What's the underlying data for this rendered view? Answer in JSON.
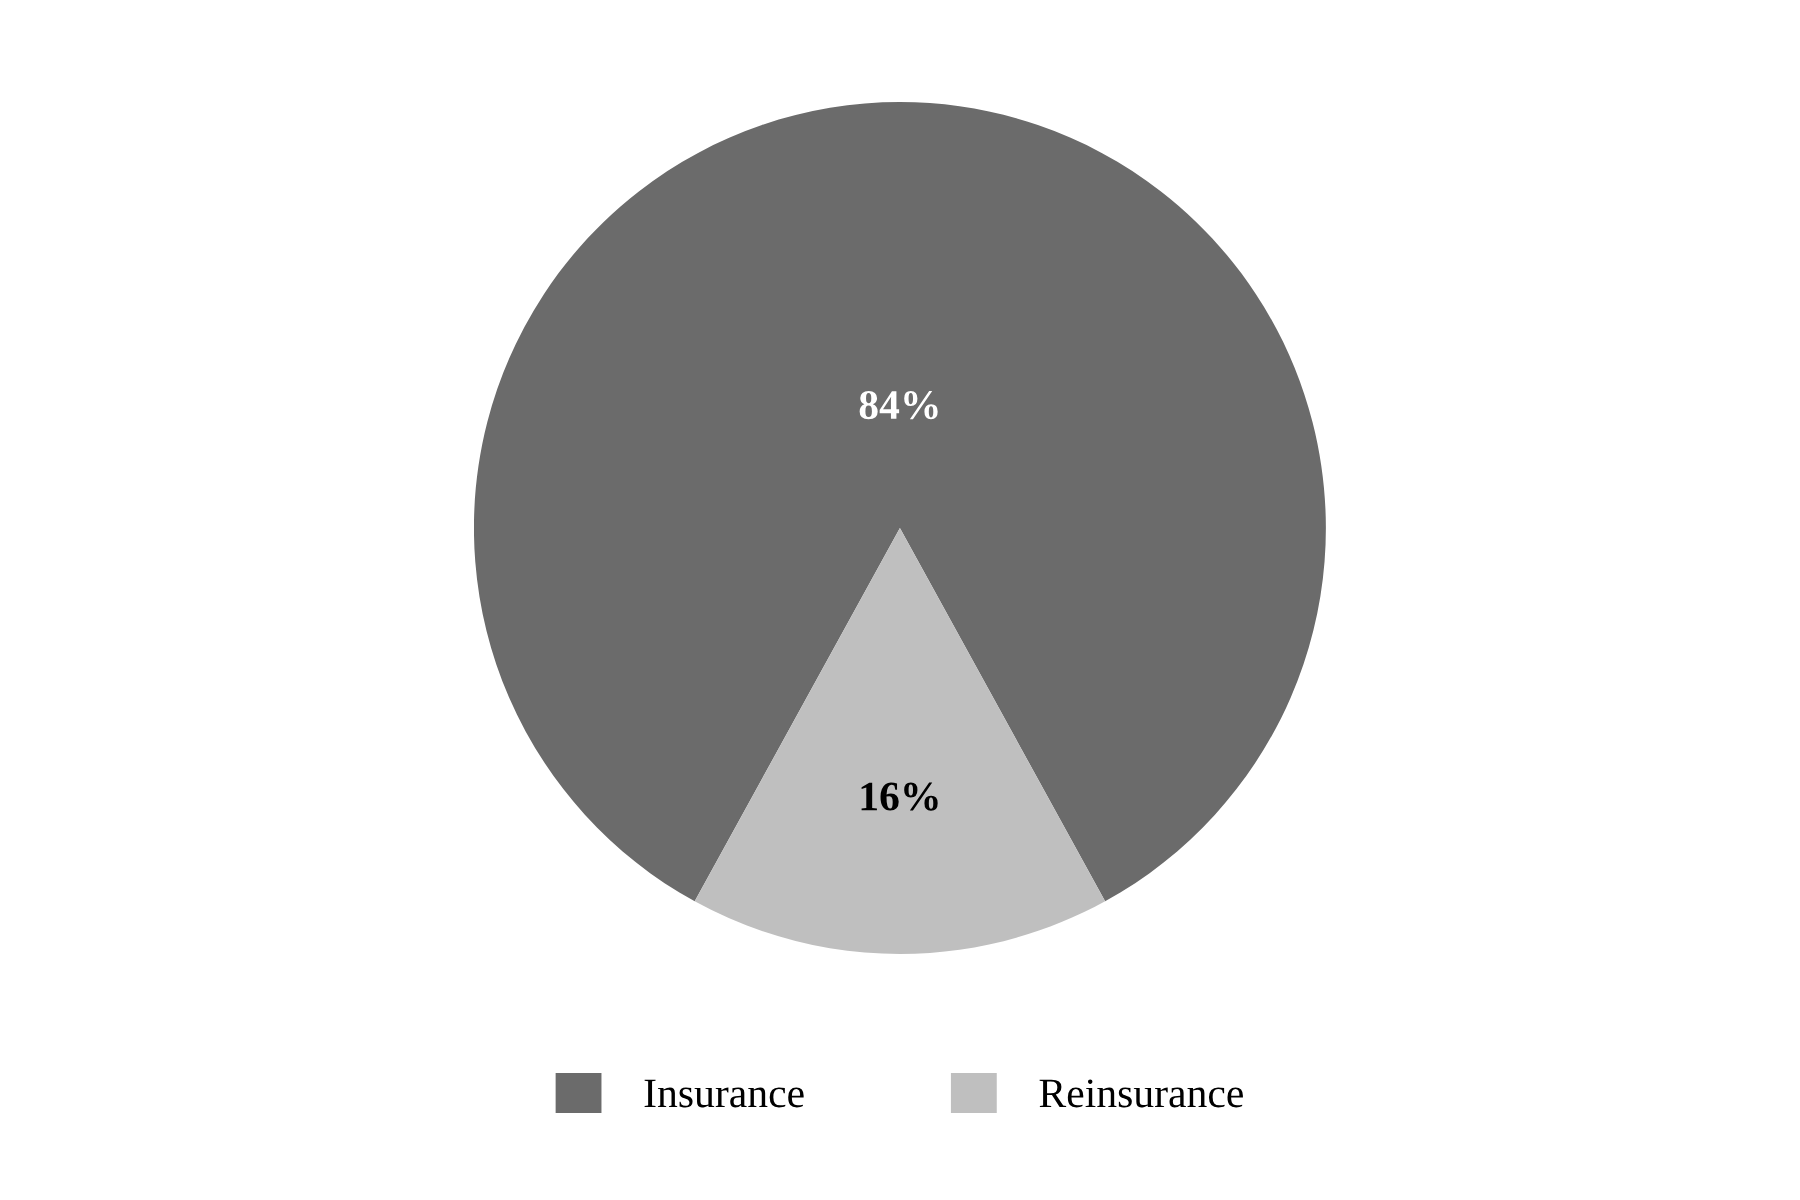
{
  "chart_data": {
    "type": "pie",
    "categories": [
      "Insurance",
      "Reinsurance"
    ],
    "values": [
      84,
      16
    ],
    "colors": [
      "#6b6b6b",
      "#bfbfbf"
    ],
    "value_labels": [
      "84%",
      "16%"
    ],
    "legend": "bottom"
  }
}
